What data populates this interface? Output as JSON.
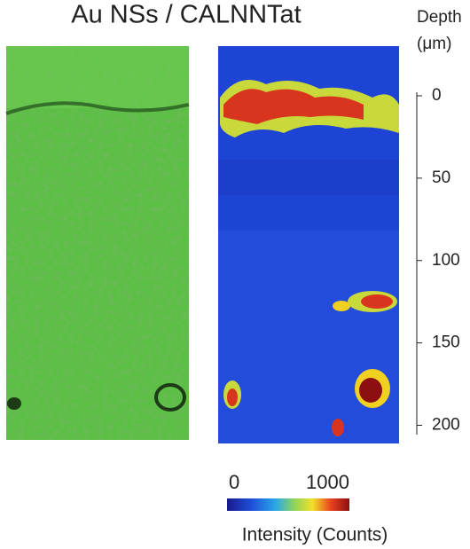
{
  "title": "Au NSs / CALNNTat",
  "depth_axis": {
    "label": "Depth",
    "unit": "(μm)",
    "lim": [
      0,
      205
    ],
    "ticks": [
      0,
      50,
      100,
      150,
      200
    ]
  },
  "colorbar": {
    "lim": [
      0,
      1000
    ],
    "ticks": [
      0,
      1000
    ],
    "label": "Intensity (Counts)"
  }
}
